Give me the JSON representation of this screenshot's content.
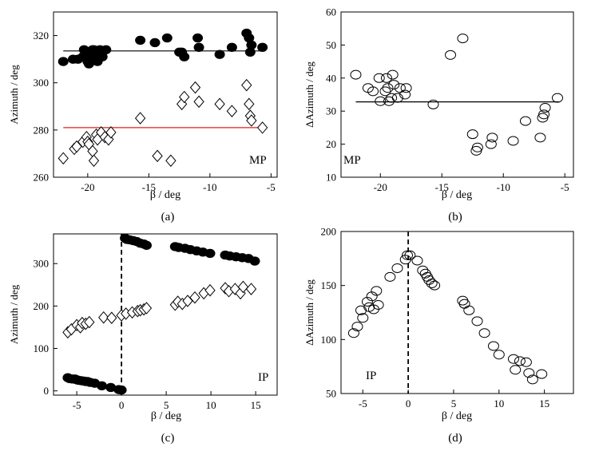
{
  "figure": {
    "panel_letters": [
      "(a)",
      "(b)",
      "(c)",
      "(d)"
    ]
  },
  "chart_data": [
    {
      "type": "scatter",
      "panel": "(a)",
      "annotation": "MP",
      "xlabel": "β / deg",
      "ylabel": "Azimuth / deg",
      "xlim": [
        -22.8,
        -4.5
      ],
      "ylim": [
        260,
        330
      ],
      "xticks": [
        -20,
        -15,
        -10,
        -5
      ],
      "xtick_labels": [
        "-20",
        "-15",
        "-10",
        "-5"
      ],
      "yticks": [
        260,
        280,
        300,
        320
      ],
      "ytick_labels": [
        "260",
        "280",
        "300",
        "320"
      ],
      "series": [
        {
          "name": "filled circles",
          "marker": "filled-circle",
          "x": [
            -22.0,
            -21.2,
            -20.8,
            -20.4,
            -20.3,
            -20.1,
            -20.0,
            -19.9,
            -19.7,
            -19.6,
            -19.5,
            -19.3,
            -19.2,
            -19.0,
            -18.8,
            -18.5,
            -15.7,
            -14.5,
            -13.5,
            -12.5,
            -12.3,
            -12.1,
            -11.0,
            -10.9,
            -9.2,
            -8.2,
            -7.0,
            -6.8,
            -6.7,
            -6.6,
            -5.7
          ],
          "y": [
            309,
            310,
            310,
            311,
            314,
            312,
            309,
            308,
            310,
            314,
            314,
            312,
            309,
            314,
            311,
            314,
            318,
            317,
            319,
            313,
            313,
            311,
            319,
            315,
            312,
            315,
            321,
            319,
            313,
            316,
            315
          ]
        },
        {
          "name": "open diamonds",
          "marker": "open-diamond",
          "x": [
            -22.0,
            -21.1,
            -20.9,
            -20.4,
            -20.1,
            -20.0,
            -19.9,
            -19.6,
            -19.5,
            -19.3,
            -19.2,
            -18.9,
            -18.6,
            -18.3,
            -18.1,
            -15.7,
            -14.3,
            -13.2,
            -12.3,
            -12.1,
            -11.2,
            -10.9,
            -9.2,
            -8.2,
            -7.0,
            -6.8,
            -6.7,
            -6.6,
            -5.7
          ],
          "y": [
            268,
            272,
            273,
            275,
            277,
            275,
            274,
            271,
            267,
            278,
            276,
            279,
            277,
            276,
            279,
            285,
            269,
            267,
            291,
            294,
            298,
            292,
            291,
            288,
            299,
            291,
            286,
            284,
            281
          ]
        }
      ],
      "lines": [
        {
          "name": "black mean line",
          "color": "#000000",
          "x": [
            -22.0,
            -5.5
          ],
          "y": [
            313.5,
            313.5
          ]
        },
        {
          "name": "red mean line",
          "color": "#e0201a",
          "x": [
            -22.0,
            -5.5
          ],
          "y": [
            281,
            281
          ]
        }
      ]
    },
    {
      "type": "scatter",
      "panel": "(b)",
      "annotation": "MP",
      "xlabel": "β / deg",
      "ylabel": "ΔAzimuth / deg",
      "xlim": [
        -23.2,
        -4.3
      ],
      "ylim": [
        10,
        60
      ],
      "xticks": [
        -20,
        -15,
        -10,
        -5
      ],
      "xtick_labels": [
        "-20",
        "-15",
        "-10",
        "-5"
      ],
      "yticks": [
        10,
        20,
        30,
        40,
        50,
        60
      ],
      "ytick_labels": [
        "10",
        "20",
        "30",
        "40",
        "50",
        "60"
      ],
      "series": [
        {
          "name": "open circles",
          "marker": "open-circle",
          "x": [
            -22.0,
            -21.0,
            -20.6,
            -20.1,
            -20.0,
            -19.6,
            -19.5,
            -19.4,
            -19.3,
            -19.1,
            -19.0,
            -18.9,
            -18.6,
            -18.4,
            -18.0,
            -17.9,
            -15.7,
            -14.3,
            -13.3,
            -12.5,
            -12.2,
            -12.1,
            -11.0,
            -10.9,
            -9.2,
            -8.2,
            -7.0,
            -6.8,
            -6.7,
            -6.6,
            -5.6
          ],
          "y": [
            41,
            37,
            36,
            40,
            33,
            36,
            40,
            37,
            33,
            34,
            41,
            38,
            34,
            37,
            35,
            37,
            32,
            47,
            52,
            23,
            18,
            19,
            20,
            22,
            21,
            27,
            22,
            28,
            29,
            31,
            34
          ]
        }
      ],
      "lines": [
        {
          "name": "mean line",
          "color": "#000000",
          "x": [
            -22.0,
            -5.5
          ],
          "y": [
            32.8,
            32.8
          ]
        }
      ]
    },
    {
      "type": "scatter",
      "panel": "(c)",
      "annotation": "IP",
      "xlabel": "β / deg",
      "ylabel": "Azimuth / deg",
      "xlim": [
        -7.6,
        17.4
      ],
      "ylim": [
        -10,
        370
      ],
      "xticks": [
        -5,
        0,
        5,
        10,
        15
      ],
      "xtick_labels": [
        "-5",
        "0",
        "5",
        "10",
        "15"
      ],
      "yticks": [
        0,
        100,
        200,
        300
      ],
      "ytick_labels": [
        "0",
        "100",
        "200",
        "300"
      ],
      "vline": {
        "x": 0,
        "style": "dashed"
      },
      "series": [
        {
          "name": "filled circles",
          "marker": "filled-circle",
          "x": [
            -6.0,
            -5.8,
            -5.5,
            -5.2,
            -5.0,
            -4.8,
            -4.5,
            -4.2,
            -4.0,
            -3.8,
            -3.5,
            -3.0,
            -2.2,
            -1.2,
            -0.3,
            0.0,
            0.4,
            0.6,
            0.9,
            1.3,
            1.7,
            2.1,
            2.5,
            2.8,
            6.0,
            6.4,
            7.1,
            7.7,
            8.4,
            9.1,
            9.9,
            11.6,
            12.1,
            12.8,
            13.5,
            14.2,
            14.9
          ],
          "y": [
            31,
            29,
            28,
            28,
            26,
            25,
            24,
            23,
            22,
            22,
            20,
            18,
            12,
            8,
            3,
            2,
            360,
            357,
            356,
            354,
            352,
            348,
            346,
            343,
            340,
            338,
            336,
            333,
            330,
            327,
            324,
            320,
            318,
            316,
            314,
            312,
            306
          ]
        },
        {
          "name": "open diamonds",
          "marker": "open-diamond",
          "x": [
            -6.0,
            -5.6,
            -5.0,
            -4.6,
            -4.4,
            -4.0,
            -3.6,
            -2.0,
            -1.1,
            0.0,
            0.5,
            1.2,
            1.8,
            2.1,
            2.5,
            2.8,
            6.0,
            6.3,
            6.8,
            7.4,
            8.2,
            9.2,
            9.9,
            11.6,
            12.0,
            12.7,
            13.3,
            13.6,
            14.5
          ],
          "y": [
            138,
            145,
            155,
            150,
            160,
            158,
            162,
            173,
            172,
            178,
            182,
            185,
            188,
            190,
            192,
            195,
            203,
            210,
            205,
            212,
            220,
            230,
            237,
            242,
            235,
            240,
            230,
            245,
            240
          ]
        }
      ]
    },
    {
      "type": "scatter",
      "panel": "(d)",
      "annotation": "IP",
      "xlabel": "β / deg",
      "ylabel": "ΔAzimuth / deg",
      "xlim": [
        -7.4,
        18.2
      ],
      "ylim": [
        50,
        200
      ],
      "xticks": [
        -5,
        0,
        5,
        10,
        15
      ],
      "xtick_labels": [
        "-5",
        "0",
        "5",
        "10",
        "15"
      ],
      "yticks": [
        50,
        100,
        150,
        200
      ],
      "ytick_labels": [
        "50",
        "100",
        "150",
        "200"
      ],
      "vline": {
        "x": 0,
        "style": "dashed"
      },
      "series": [
        {
          "name": "open circles",
          "marker": "open-circle",
          "x": [
            -6.0,
            -5.6,
            -5.2,
            -5.0,
            -4.5,
            -4.3,
            -4.0,
            -3.8,
            -3.5,
            -3.3,
            -2.0,
            -1.2,
            -0.3,
            -0.1,
            0.2,
            1.0,
            1.6,
            1.9,
            2.1,
            2.3,
            2.6,
            2.9,
            6.0,
            6.2,
            6.7,
            7.6,
            8.4,
            9.4,
            10.0,
            11.6,
            11.8,
            12.3,
            13.0,
            13.3,
            13.7,
            14.7
          ],
          "y": [
            106,
            112,
            127,
            120,
            135,
            130,
            140,
            128,
            145,
            132,
            158,
            166,
            174,
            178,
            178,
            173,
            164,
            161,
            158,
            155,
            152,
            150,
            136,
            133,
            127,
            117,
            106,
            94,
            86,
            82,
            72,
            80,
            79,
            69,
            63,
            68
          ]
        }
      ]
    }
  ]
}
